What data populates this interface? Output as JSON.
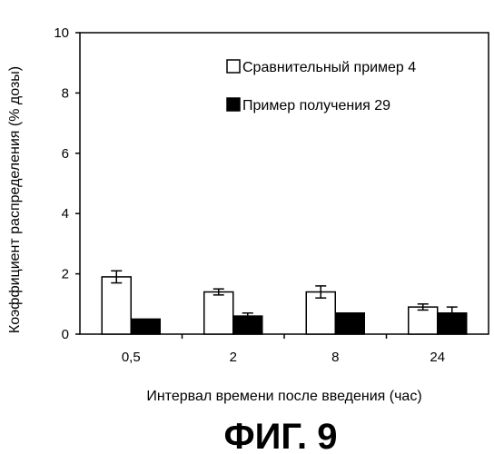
{
  "chart_data": {
    "type": "bar",
    "title": "",
    "xlabel": "Интервал времени после введения (час)",
    "ylabel": "Коэффициент распределения (% дозы)",
    "ylim": [
      0,
      10
    ],
    "yticks": [
      "0",
      "2",
      "4",
      "6",
      "8",
      "10"
    ],
    "categories": [
      "0,5",
      "2",
      "8",
      "24"
    ],
    "series": [
      {
        "name": "Сравнительный пример 4",
        "values": [
          1.9,
          1.4,
          1.4,
          0.9
        ],
        "errors": [
          0.2,
          0.1,
          0.2,
          0.1
        ],
        "fill": "#ffffff"
      },
      {
        "name": "Пример получения 29",
        "values": [
          0.5,
          0.6,
          0.7,
          0.7
        ],
        "errors": [
          0,
          0.1,
          0,
          0.2
        ],
        "fill": "#000000"
      }
    ],
    "grid": false,
    "legend_position": "top-right",
    "figure_label": "ФИГ. 9"
  }
}
